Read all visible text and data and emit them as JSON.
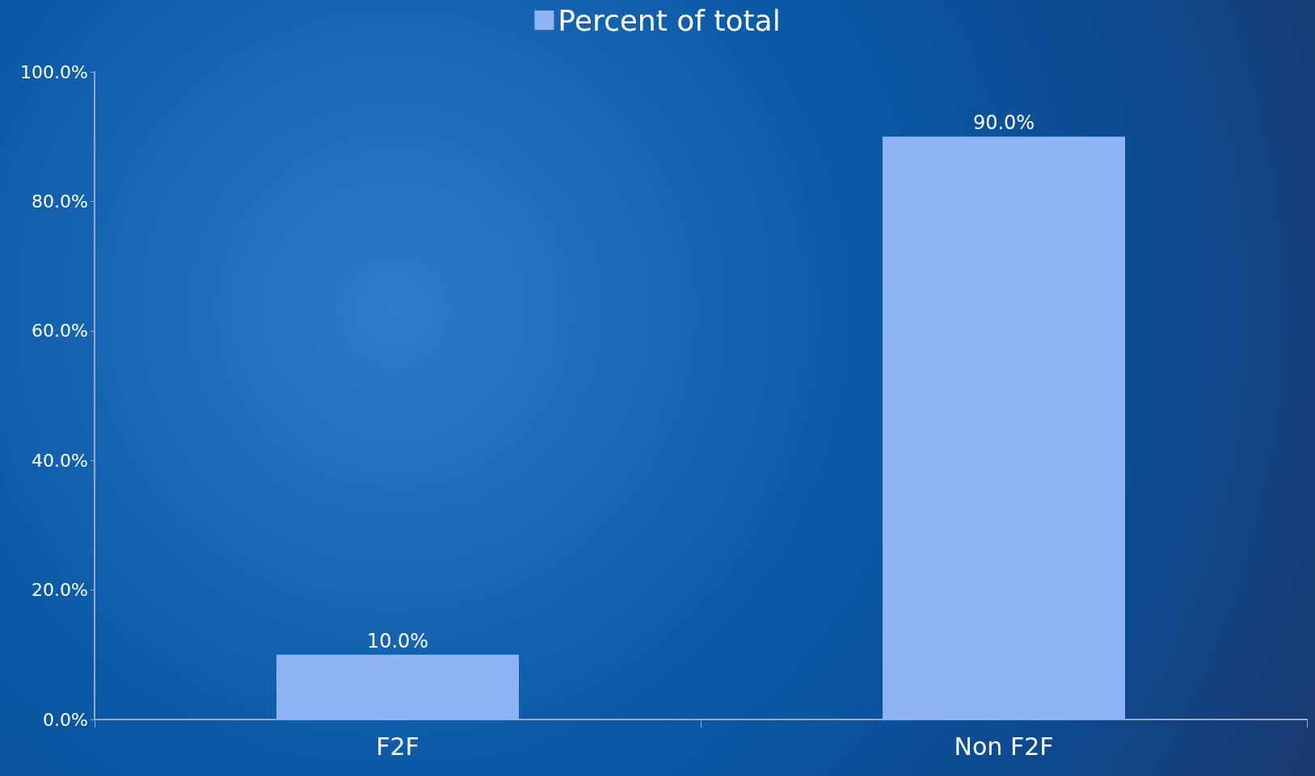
{
  "chart_data": {
    "type": "bar",
    "categories": [
      "F2F",
      "Non F2F"
    ],
    "series": [
      {
        "name": "Percent of total",
        "color": "#8fb4f5",
        "values": [
          10,
          90
        ],
        "value_labels": [
          "10.0%",
          "90.0%"
        ]
      }
    ],
    "ylim": [
      0,
      100
    ],
    "yticks": [
      {
        "value": 0,
        "label": "0.0%"
      },
      {
        "value": 20,
        "label": "20.0%"
      },
      {
        "value": 40,
        "label": "40.0%"
      },
      {
        "value": 60,
        "label": "60.0%"
      },
      {
        "value": 80,
        "label": "80.0%"
      },
      {
        "value": 100,
        "label": "100.0%"
      }
    ],
    "grid": false,
    "legend": "top"
  }
}
